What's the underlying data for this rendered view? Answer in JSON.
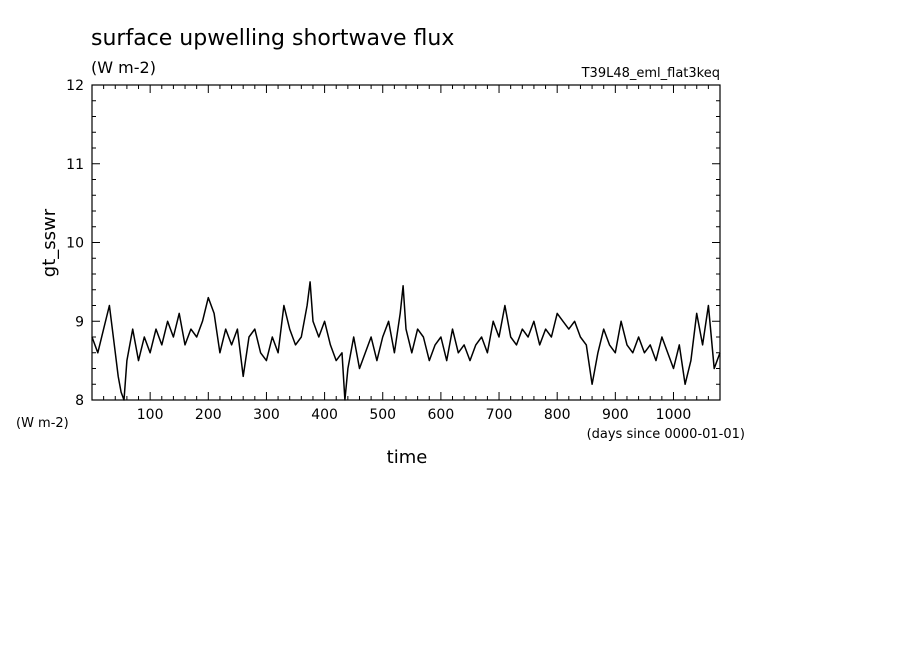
{
  "chart_data": {
    "type": "line",
    "title": "surface upwelling shortwave flux",
    "title_units": "(W m-2)",
    "run_label": "T39L48_eml_flat3keq",
    "xlabel": "time",
    "xlabel_units": "(days since 0000-01-01)",
    "ylabel": "gt_sswr",
    "ylabel_units": "(W m-2)",
    "xlim": [
      0,
      1080
    ],
    "ylim": [
      8,
      12
    ],
    "x_ticks": [
      100,
      200,
      300,
      400,
      500,
      600,
      700,
      800,
      900,
      1000
    ],
    "y_ticks": [
      8,
      9,
      10,
      11,
      12
    ],
    "grid": false,
    "series": [
      {
        "x": [
          0,
          10,
          20,
          30,
          40,
          45,
          50,
          55,
          60,
          70,
          80,
          90,
          100,
          110,
          120,
          130,
          140,
          150,
          160,
          170,
          180,
          190,
          200,
          210,
          220,
          230,
          240,
          250,
          260,
          270,
          280,
          290,
          300,
          310,
          320,
          330,
          340,
          350,
          360,
          370,
          375,
          380,
          390,
          400,
          410,
          420,
          430,
          435,
          440,
          450,
          460,
          470,
          480,
          490,
          500,
          510,
          520,
          530,
          535,
          540,
          550,
          560,
          570,
          580,
          590,
          600,
          610,
          620,
          630,
          640,
          650,
          660,
          670,
          680,
          690,
          700,
          710,
          720,
          730,
          740,
          750,
          760,
          770,
          780,
          790,
          800,
          810,
          820,
          830,
          840,
          850,
          860,
          870,
          880,
          890,
          900,
          910,
          920,
          930,
          940,
          950,
          960,
          970,
          980,
          990,
          1000,
          1010,
          1020,
          1030,
          1040,
          1050,
          1060,
          1070,
          1080
        ],
        "y": [
          8.8,
          8.6,
          8.9,
          9.2,
          8.6,
          8.3,
          8.1,
          8.0,
          8.5,
          8.9,
          8.5,
          8.8,
          8.6,
          8.9,
          8.7,
          9.0,
          8.8,
          9.1,
          8.7,
          8.9,
          8.8,
          9.0,
          9.3,
          9.1,
          8.6,
          8.9,
          8.7,
          8.9,
          8.3,
          8.8,
          8.9,
          8.6,
          8.5,
          8.8,
          8.6,
          9.2,
          8.9,
          8.7,
          8.8,
          9.2,
          9.5,
          9.0,
          8.8,
          9.0,
          8.7,
          8.5,
          8.6,
          8.0,
          8.4,
          8.8,
          8.4,
          8.6,
          8.8,
          8.5,
          8.8,
          9.0,
          8.6,
          9.1,
          9.45,
          8.9,
          8.6,
          8.9,
          8.8,
          8.5,
          8.7,
          8.8,
          8.5,
          8.9,
          8.6,
          8.7,
          8.5,
          8.7,
          8.8,
          8.6,
          9.0,
          8.8,
          9.2,
          8.8,
          8.7,
          8.9,
          8.8,
          9.0,
          8.7,
          8.9,
          8.8,
          9.1,
          9.0,
          8.9,
          9.0,
          8.8,
          8.7,
          8.2,
          8.6,
          8.9,
          8.7,
          8.6,
          9.0,
          8.7,
          8.6,
          8.8,
          8.6,
          8.7,
          8.5,
          8.8,
          8.6,
          8.4,
          8.7,
          8.2,
          8.5,
          9.1,
          8.7,
          9.2,
          8.4,
          8.6
        ]
      }
    ]
  }
}
